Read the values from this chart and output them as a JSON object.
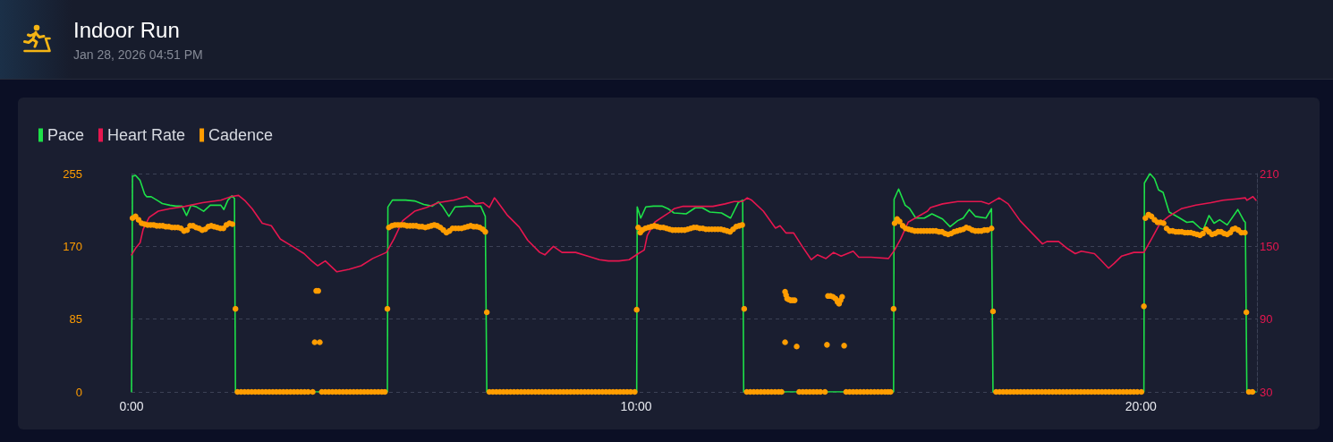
{
  "chart_data": {
    "type": "line",
    "title": "Indoor Run",
    "subtitle": "Jan 28, 2026 04:51 PM",
    "legend": "top left",
    "grid": "y",
    "marker": "none",
    "xlim": [
      0,
      22.3
    ],
    "xticks": [
      {
        "value": 0,
        "label": "0:00"
      },
      {
        "value": 10,
        "label": "10:00"
      },
      {
        "value": 20,
        "label": "20:00"
      }
    ],
    "ylim": [
      0,
      255
    ],
    "yticks": [
      0,
      85,
      170,
      255
    ],
    "y2lim": [
      30,
      210
    ],
    "y2ticks": [
      30,
      90,
      150,
      210
    ],
    "series": [
      {
        "name": "Pace",
        "color": "#1de048",
        "x": [
          0,
          0.02,
          0.08,
          0.17,
          0.26,
          0.3,
          0.39,
          0.53,
          0.61,
          0.76,
          0.88,
          1.0,
          1.09,
          1.18,
          1.29,
          1.43,
          1.56,
          1.77,
          1.83,
          1.91,
          1.99,
          2.04,
          2.06,
          5.07,
          5.08,
          5.17,
          5.26,
          5.43,
          5.61,
          5.79,
          5.96,
          6.08,
          6.17,
          6.29,
          6.41,
          6.67,
          6.92,
          7.01,
          7.04,
          10.01,
          10.02,
          10.09,
          10.19,
          10.34,
          10.51,
          10.63,
          10.75,
          10.99,
          11.17,
          11.31,
          11.46,
          11.69,
          11.87,
          12.02,
          12.11,
          12.13,
          15.1,
          15.11,
          15.2,
          15.33,
          15.42,
          15.54,
          15.71,
          15.86,
          16.07,
          16.22,
          16.37,
          16.48,
          16.6,
          16.72,
          16.93,
          17.04,
          17.07,
          20.06,
          20.07,
          20.18,
          20.27,
          20.35,
          20.44,
          20.56,
          20.74,
          20.91,
          21.03,
          21.18,
          21.24,
          21.35,
          21.45,
          21.56,
          21.71,
          21.92,
          22.04,
          22.07,
          22.1,
          22.28
        ],
        "values": [
          0,
          252,
          253,
          247,
          231,
          228,
          228,
          223,
          220,
          218,
          217,
          217,
          206,
          218,
          216,
          211,
          218,
          218,
          213,
          224,
          229,
          226,
          0,
          0,
          216,
          224,
          224,
          224,
          223,
          219,
          217,
          222,
          216,
          205,
          216,
          217,
          217,
          205,
          0,
          0,
          216,
          203,
          216,
          217,
          217,
          214,
          209,
          208,
          215,
          215,
          210,
          209,
          203,
          221,
          224,
          0,
          0,
          225,
          237,
          218,
          214,
          203,
          203,
          208,
          202,
          193,
          200,
          203,
          213,
          205,
          203,
          214,
          0,
          0,
          244,
          255,
          249,
          236,
          233,
          210,
          204,
          198,
          199,
          191,
          190,
          206,
          197,
          201,
          195,
          213,
          200,
          198,
          0,
          0
        ]
      },
      {
        "name": "Heart Rate",
        "color": "#e6164f",
        "axis": "y2",
        "x": [
          0,
          0.09,
          0.17,
          0.23,
          0.35,
          0.53,
          0.76,
          1.06,
          1.41,
          1.77,
          1.97,
          2.12,
          2.24,
          2.39,
          2.59,
          2.77,
          2.95,
          3.19,
          3.42,
          3.57,
          3.69,
          3.84,
          4.07,
          4.31,
          4.55,
          4.78,
          5.05,
          5.2,
          5.37,
          5.61,
          5.84,
          6.08,
          6.38,
          6.64,
          6.82,
          6.97,
          7.09,
          7.19,
          7.23,
          7.44,
          7.68,
          7.85,
          8.09,
          8.19,
          8.36,
          8.53,
          8.8,
          9.04,
          9.27,
          9.45,
          9.66,
          9.86,
          10.04,
          10.16,
          10.22,
          10.37,
          10.51,
          10.66,
          10.75,
          10.93,
          11.22,
          11.52,
          11.76,
          11.94,
          12.11,
          12.2,
          12.29,
          12.52,
          12.76,
          12.85,
          12.97,
          13.12,
          13.29,
          13.47,
          13.59,
          13.76,
          13.91,
          14.06,
          14.3,
          14.41,
          14.65,
          15.0,
          15.12,
          15.24,
          15.39,
          15.6,
          15.77,
          15.83,
          16.07,
          16.37,
          16.54,
          16.84,
          16.99,
          17.19,
          17.37,
          17.61,
          17.84,
          18.05,
          18.14,
          18.37,
          18.55,
          18.7,
          18.82,
          19.08,
          19.2,
          19.36,
          19.47,
          19.62,
          19.86,
          20.06,
          20.21,
          20.38,
          20.56,
          20.8,
          21.09,
          21.39,
          21.63,
          21.86,
          22.07,
          22.1,
          22.22,
          22.28
        ],
        "values": [
          143,
          149,
          153,
          164,
          174,
          179,
          181,
          183,
          186,
          188,
          191,
          192,
          188,
          181,
          169,
          167,
          156,
          150,
          144,
          138,
          134,
          138,
          129,
          131,
          134,
          140,
          145,
          156,
          171,
          179,
          182,
          186,
          188,
          191,
          185,
          186,
          182,
          190,
          188,
          176,
          166,
          155,
          145,
          143,
          150,
          145,
          145,
          142,
          139,
          138,
          138,
          139,
          144,
          147,
          159,
          170,
          174,
          178,
          181,
          183,
          183,
          183,
          185,
          187,
          187,
          190,
          188,
          179,
          165,
          167,
          161,
          161,
          150,
          139,
          143,
          140,
          145,
          142,
          146,
          141,
          141,
          140,
          147,
          156,
          170,
          175,
          179,
          182,
          185,
          187,
          187,
          187,
          185,
          190,
          185,
          171,
          161,
          152,
          154,
          154,
          148,
          144,
          146,
          144,
          139,
          132,
          136,
          142,
          145,
          145,
          156,
          169,
          175,
          181,
          184,
          186,
          188,
          189,
          190,
          188,
          191,
          188
        ]
      },
      {
        "name": "Cadence",
        "color": "#ff9d00",
        "type": "scatter",
        "marker": "circle",
        "x": [
          0.02,
          0.08,
          0.14,
          0.2,
          0.26,
          0.32,
          0.38,
          0.44,
          0.5,
          0.56,
          0.62,
          0.68,
          0.74,
          0.8,
          0.86,
          0.92,
          0.98,
          1.04,
          1.1,
          1.16,
          1.22,
          1.28,
          1.34,
          1.4,
          1.46,
          1.52,
          1.58,
          1.64,
          1.7,
          1.76,
          1.82,
          1.88,
          1.94,
          2.0,
          2.06,
          2.1,
          2.17,
          2.24,
          2.31,
          2.38,
          2.45,
          2.52,
          2.59,
          2.66,
          2.73,
          2.8,
          2.87,
          2.94,
          3.01,
          3.08,
          3.15,
          3.22,
          3.29,
          3.36,
          3.43,
          3.5,
          3.59,
          3.63,
          3.66,
          3.7,
          3.73,
          3.77,
          3.84,
          3.91,
          3.98,
          4.05,
          4.12,
          4.19,
          4.26,
          4.33,
          4.4,
          4.47,
          4.54,
          4.61,
          4.68,
          4.75,
          4.82,
          4.89,
          4.96,
          5.02,
          5.07,
          5.1,
          5.16,
          5.22,
          5.28,
          5.34,
          5.4,
          5.46,
          5.52,
          5.58,
          5.64,
          5.7,
          5.76,
          5.82,
          5.88,
          5.94,
          6.0,
          6.06,
          6.12,
          6.18,
          6.24,
          6.3,
          6.36,
          6.42,
          6.48,
          6.54,
          6.6,
          6.66,
          6.72,
          6.78,
          6.84,
          6.9,
          6.96,
          7.01,
          7.04,
          7.09,
          7.16,
          7.23,
          7.3,
          7.37,
          7.44,
          7.51,
          7.58,
          7.65,
          7.72,
          7.79,
          7.86,
          7.93,
          8.0,
          8.07,
          8.14,
          8.21,
          8.28,
          8.35,
          8.42,
          8.49,
          8.56,
          8.63,
          8.7,
          8.77,
          8.84,
          8.91,
          8.98,
          9.05,
          9.12,
          9.19,
          9.26,
          9.33,
          9.4,
          9.47,
          9.54,
          9.61,
          9.68,
          9.75,
          9.82,
          9.89,
          9.97,
          10.01,
          10.04,
          10.08,
          10.12,
          10.18,
          10.24,
          10.3,
          10.36,
          10.42,
          10.48,
          10.54,
          10.6,
          10.66,
          10.72,
          10.78,
          10.84,
          10.9,
          10.96,
          11.02,
          11.08,
          11.14,
          11.2,
          11.26,
          11.32,
          11.38,
          11.44,
          11.5,
          11.56,
          11.62,
          11.68,
          11.74,
          11.8,
          11.86,
          11.92,
          11.98,
          12.04,
          12.1,
          12.14,
          12.19,
          12.26,
          12.33,
          12.4,
          12.47,
          12.54,
          12.61,
          12.68,
          12.75,
          12.82,
          12.88,
          12.95,
          12.95,
          12.97,
          12.99,
          13.02,
          13.06,
          13.1,
          13.14,
          13.18,
          13.23,
          13.3,
          13.37,
          13.44,
          13.51,
          13.58,
          13.65,
          13.74,
          13.78,
          13.8,
          13.85,
          13.9,
          13.95,
          13.99,
          14.02,
          14.05,
          14.08,
          14.12,
          14.16,
          14.23,
          14.3,
          14.37,
          14.44,
          14.51,
          14.58,
          14.65,
          14.72,
          14.79,
          14.86,
          14.93,
          14.99,
          15.04,
          15.1,
          15.12,
          15.17,
          15.22,
          15.28,
          15.34,
          15.4,
          15.46,
          15.52,
          15.58,
          15.64,
          15.7,
          15.76,
          15.82,
          15.88,
          15.94,
          16.0,
          16.06,
          16.12,
          16.18,
          16.24,
          16.3,
          16.36,
          16.42,
          16.48,
          16.54,
          16.6,
          16.66,
          16.72,
          16.78,
          16.84,
          16.9,
          16.96,
          17.04,
          17.07,
          17.13,
          17.2,
          17.27,
          17.34,
          17.41,
          17.48,
          17.55,
          17.62,
          17.69,
          17.76,
          17.83,
          17.9,
          17.97,
          18.04,
          18.11,
          18.18,
          18.25,
          18.32,
          18.39,
          18.46,
          18.53,
          18.6,
          18.67,
          18.74,
          18.81,
          18.88,
          18.95,
          19.02,
          19.09,
          19.16,
          19.23,
          19.3,
          19.37,
          19.44,
          19.51,
          19.58,
          19.65,
          19.72,
          19.79,
          19.86,
          19.93,
          20.01,
          20.06,
          20.09,
          20.15,
          20.21,
          20.27,
          20.33,
          20.39,
          20.45,
          20.51,
          20.57,
          20.63,
          20.69,
          20.75,
          20.81,
          20.87,
          20.93,
          20.99,
          21.05,
          21.11,
          21.17,
          21.23,
          21.29,
          21.35,
          21.41,
          21.47,
          21.53,
          21.59,
          21.65,
          21.71,
          21.77,
          21.82,
          21.87,
          21.93,
          21.99,
          22.06,
          22.09,
          22.14,
          22.21
        ],
        "values": [
          203,
          205,
          201,
          197,
          196,
          195,
          195,
          195,
          194,
          194,
          194,
          193,
          193,
          192,
          192,
          192,
          191,
          188,
          189,
          194,
          194,
          192,
          191,
          189,
          190,
          193,
          194,
          193,
          192,
          191,
          191,
          195,
          197,
          196,
          97,
          0,
          0,
          0,
          0,
          0,
          0,
          0,
          0,
          0,
          0,
          0,
          0,
          0,
          0,
          0,
          0,
          0,
          0,
          0,
          0,
          0,
          0,
          58,
          118,
          118,
          58,
          0,
          0,
          0,
          0,
          0,
          0,
          0,
          0,
          0,
          0,
          0,
          0,
          0,
          0,
          0,
          0,
          0,
          0,
          0,
          97,
          192,
          194,
          195,
          195,
          195,
          195,
          194,
          194,
          194,
          194,
          193,
          193,
          192,
          193,
          194,
          195,
          194,
          192,
          189,
          186,
          188,
          191,
          191,
          191,
          191,
          192,
          193,
          194,
          193,
          193,
          192,
          190,
          187,
          93,
          0,
          0,
          0,
          0,
          0,
          0,
          0,
          0,
          0,
          0,
          0,
          0,
          0,
          0,
          0,
          0,
          0,
          0,
          0,
          0,
          0,
          0,
          0,
          0,
          0,
          0,
          0,
          0,
          0,
          0,
          0,
          0,
          0,
          0,
          0,
          0,
          0,
          0,
          0,
          0,
          0,
          0,
          96,
          192,
          186,
          189,
          191,
          192,
          193,
          194,
          193,
          192,
          192,
          191,
          190,
          189,
          189,
          189,
          189,
          189,
          190,
          191,
          192,
          192,
          191,
          191,
          190,
          190,
          190,
          190,
          190,
          190,
          189,
          188,
          187,
          190,
          193,
          194,
          195,
          97,
          0,
          0,
          0,
          0,
          0,
          0,
          0,
          0,
          0,
          0,
          0,
          58,
          117,
          113,
          109,
          108,
          107,
          107,
          107,
          53,
          0,
          0,
          0,
          0,
          0,
          0,
          0,
          0,
          55,
          112,
          112,
          111,
          109,
          105,
          103,
          107,
          111,
          54,
          0,
          0,
          0,
          0,
          0,
          0,
          0,
          0,
          0,
          0,
          0,
          0,
          0,
          0,
          97,
          197,
          202,
          199,
          194,
          191,
          190,
          189,
          188,
          188,
          188,
          188,
          188,
          188,
          188,
          188,
          187,
          187,
          185,
          184,
          185,
          187,
          188,
          189,
          190,
          192,
          191,
          189,
          188,
          188,
          188,
          189,
          189,
          191,
          94,
          0,
          0,
          0,
          0,
          0,
          0,
          0,
          0,
          0,
          0,
          0,
          0,
          0,
          0,
          0,
          0,
          0,
          0,
          0,
          0,
          0,
          0,
          0,
          0,
          0,
          0,
          0,
          0,
          0,
          0,
          0,
          0,
          0,
          0,
          0,
          0,
          0,
          0,
          0,
          0,
          0,
          0,
          100,
          203,
          207,
          205,
          201,
          198,
          198,
          197,
          191,
          188,
          188,
          187,
          187,
          187,
          186,
          186,
          186,
          185,
          184,
          183,
          185,
          190,
          187,
          184,
          185,
          187,
          187,
          185,
          184,
          186,
          190,
          191,
          189,
          186,
          186,
          93,
          0,
          0
        ]
      }
    ]
  }
}
